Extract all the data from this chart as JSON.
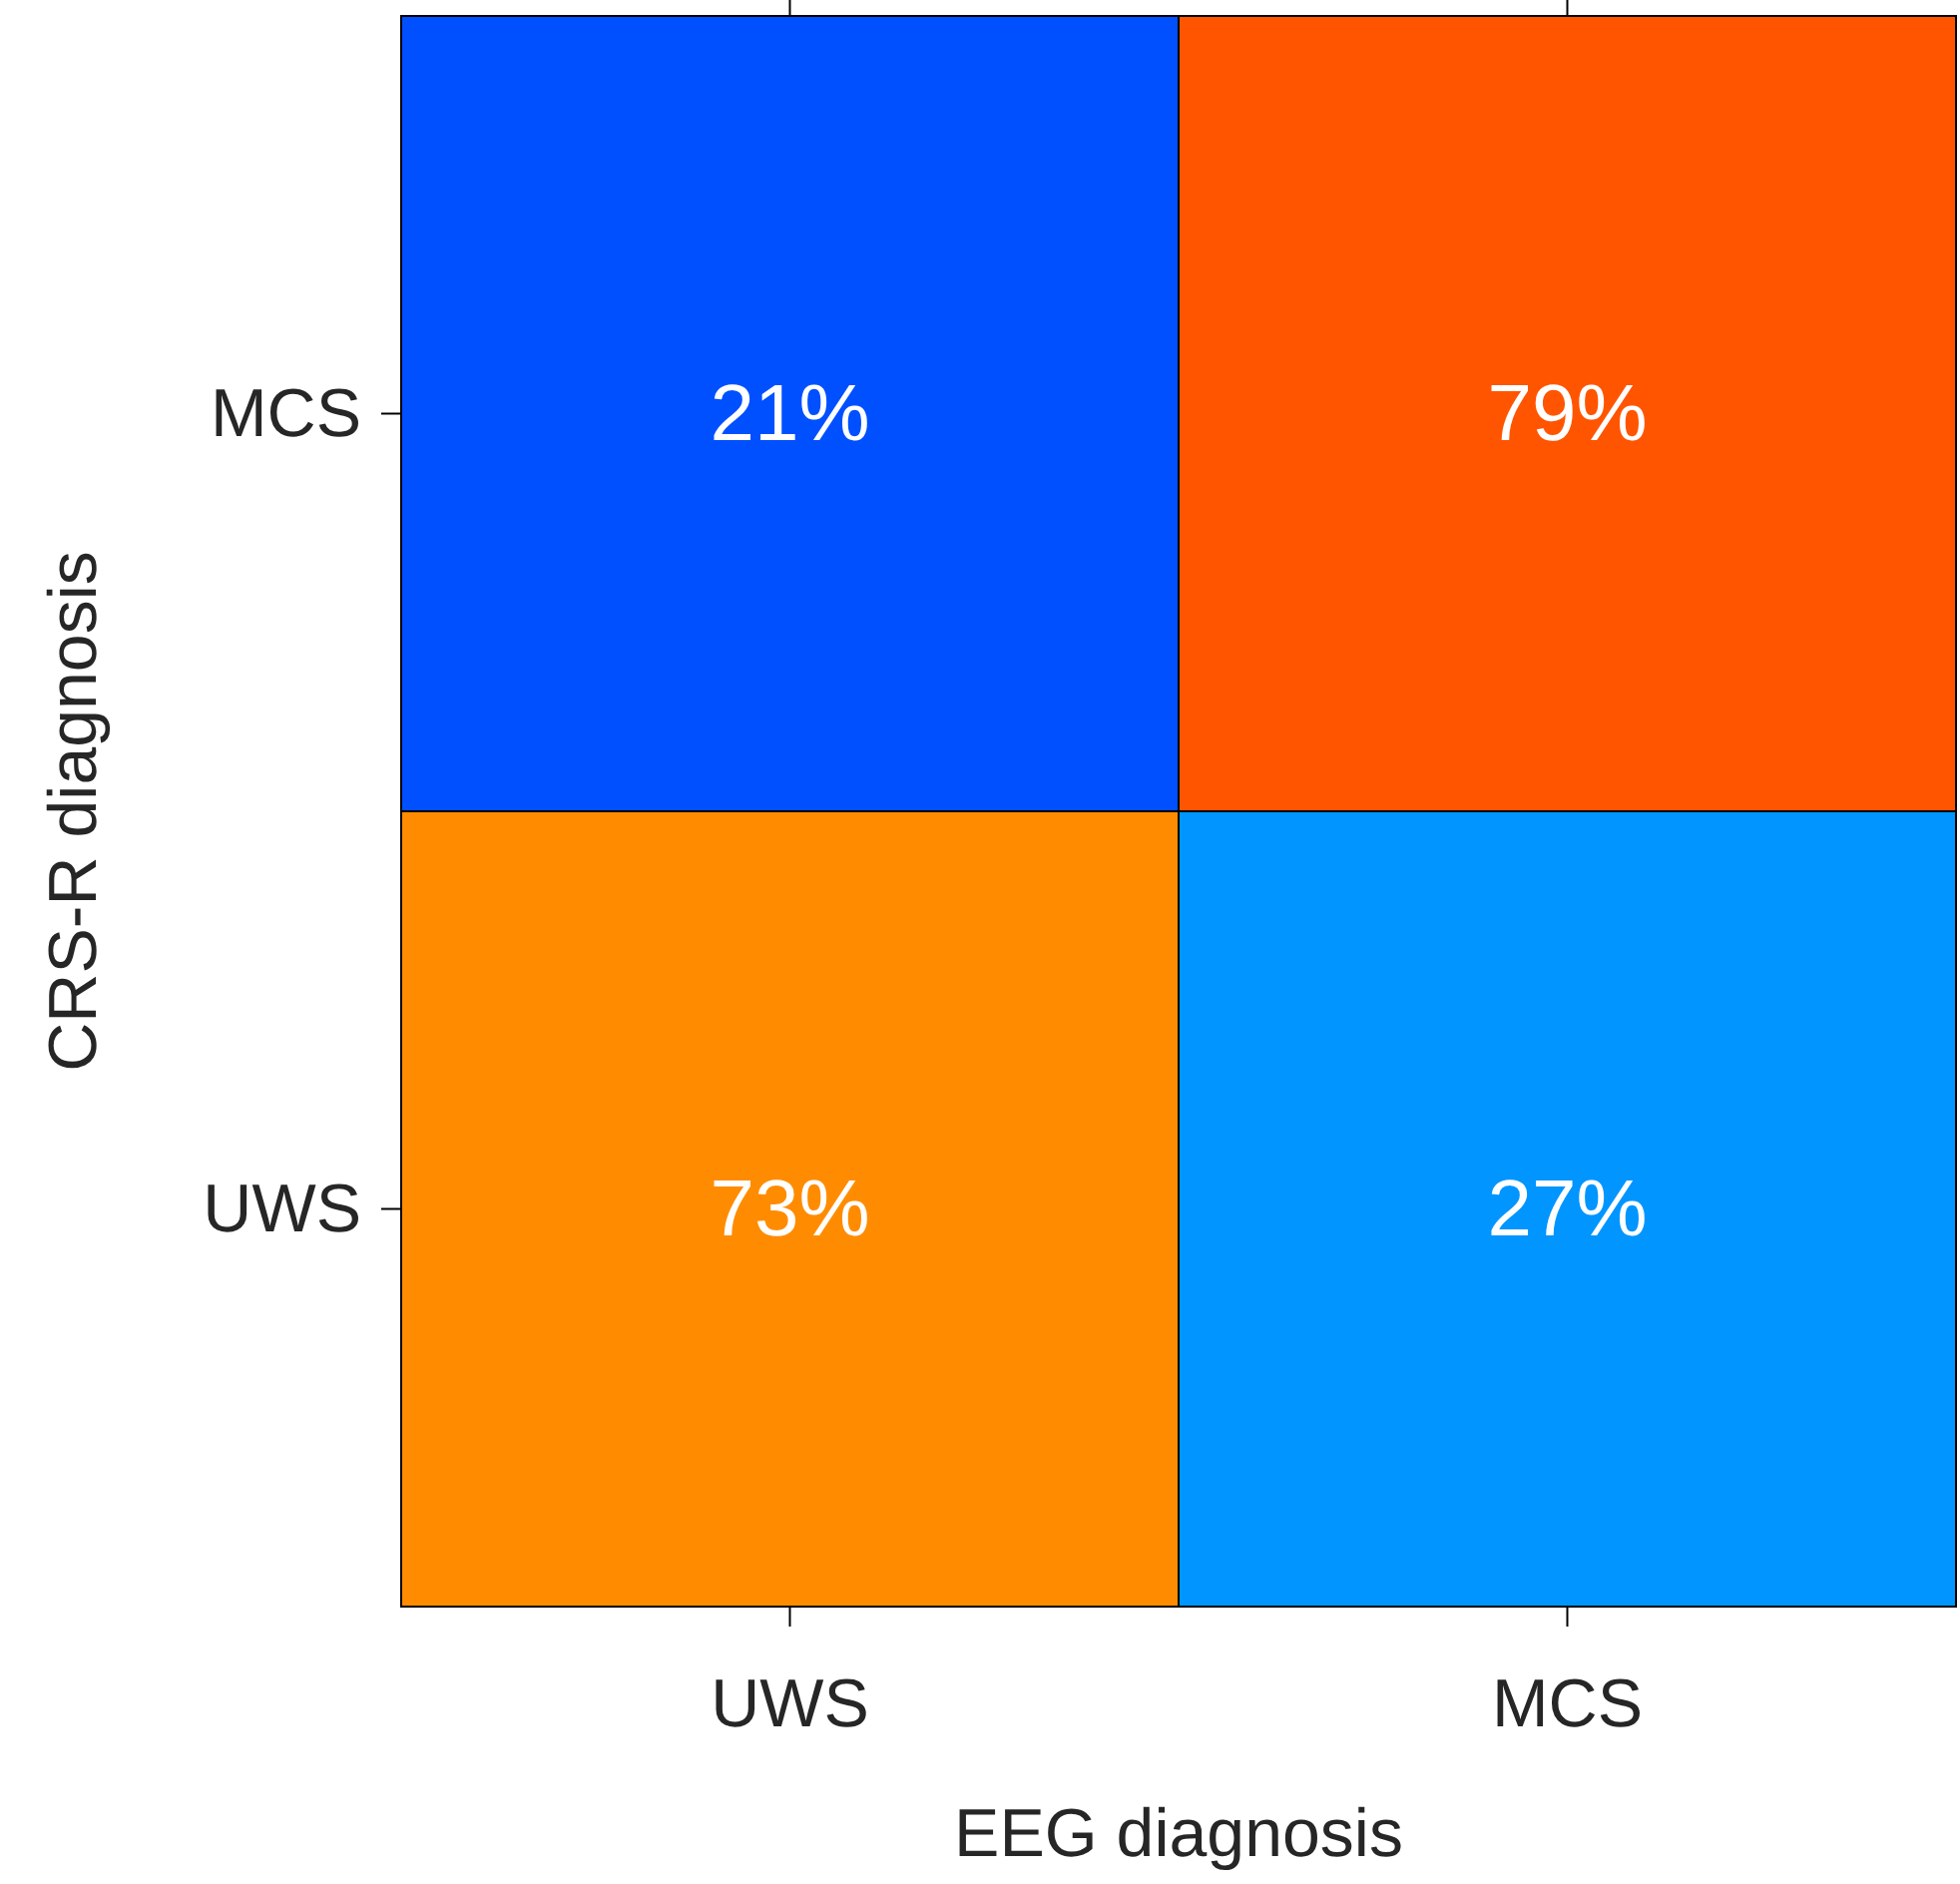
{
  "chart_data": {
    "type": "heatmap",
    "xlabel": "EEG diagnosis",
    "ylabel": "CRS-R diagnosis",
    "categories": [
      "UWS",
      "MCS"
    ],
    "y_categories": [
      "MCS",
      "UWS"
    ],
    "cells": [
      [
        21,
        79
      ],
      [
        73,
        27
      ]
    ],
    "cell_labels": [
      [
        "21%",
        "79%"
      ],
      [
        "73%",
        "27%"
      ]
    ],
    "colors": [
      "#0050ff",
      "#00f7ff",
      "#ffffff",
      "#ffda00",
      "#ff5500"
    ]
  }
}
